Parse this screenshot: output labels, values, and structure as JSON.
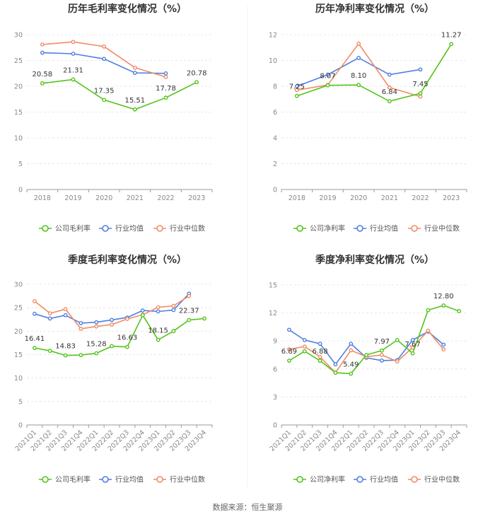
{
  "colors": {
    "company": "#52c41a",
    "average": "#4f7fe0",
    "median": "#f08c64",
    "grid": "#e8e8e8",
    "axis": "#999999"
  },
  "legend_icons": [
    "circle-line-icon",
    "circle-line-icon",
    "circle-line-icon"
  ],
  "source": "数据来源：恒生聚源",
  "chart_data": [
    {
      "type": "line",
      "title": "历年毛利率变化情况（%）",
      "categories": [
        "2018",
        "2019",
        "2020",
        "2021",
        "2022",
        "2023"
      ],
      "ylim": [
        0,
        30
      ],
      "yticks": [
        0,
        5,
        10,
        15,
        20,
        25,
        30
      ],
      "series": [
        {
          "name": "公司毛利率",
          "values": [
            20.58,
            21.31,
            17.35,
            15.51,
            17.78,
            20.78
          ]
        },
        {
          "name": "行业均值",
          "values": [
            26.5,
            26.3,
            25.3,
            22.6,
            22.5,
            null
          ]
        },
        {
          "name": "行业中位数",
          "values": [
            28.1,
            28.6,
            27.7,
            23.6,
            21.8,
            null
          ]
        }
      ],
      "labels": [
        {
          "i": 0,
          "text": "20.58"
        },
        {
          "i": 1,
          "text": "21.31"
        },
        {
          "i": 2,
          "text": "17.35"
        },
        {
          "i": 3,
          "text": "15.51"
        },
        {
          "i": 4,
          "text": "17.78"
        },
        {
          "i": 5,
          "text": "20.78"
        }
      ]
    },
    {
      "type": "line",
      "title": "历年净利率变化情况（%）",
      "categories": [
        "2018",
        "2019",
        "2020",
        "2021",
        "2022",
        "2023"
      ],
      "ylim": [
        0,
        12
      ],
      "yticks": [
        0,
        2,
        4,
        6,
        8,
        10,
        12
      ],
      "series": [
        {
          "name": "公司净利率",
          "values": [
            7.25,
            8.07,
            8.1,
            6.84,
            7.45,
            11.27
          ]
        },
        {
          "name": "行业均值",
          "values": [
            8.0,
            8.9,
            10.2,
            8.9,
            9.3,
            null
          ]
        },
        {
          "name": "行业中位数",
          "values": [
            7.7,
            8.1,
            11.3,
            7.9,
            7.2,
            null
          ]
        }
      ],
      "labels": [
        {
          "i": 0,
          "text": "7.25"
        },
        {
          "i": 1,
          "text": "8.07"
        },
        {
          "i": 2,
          "text": "8.10"
        },
        {
          "i": 3,
          "text": "6.84"
        },
        {
          "i": 4,
          "text": "7.45"
        },
        {
          "i": 5,
          "text": "11.27"
        }
      ]
    },
    {
      "type": "line",
      "title": "季度毛利率变化情况（%）",
      "categories": [
        "2021Q1",
        "2021Q2",
        "2021Q3",
        "2021Q4",
        "2022Q1",
        "2022Q2",
        "2022Q3",
        "2022Q4",
        "2023Q1",
        "2023Q2",
        "2023Q3",
        "2023Q4"
      ],
      "ylim": [
        0,
        30
      ],
      "yticks": [
        0,
        5,
        10,
        15,
        20,
        25,
        30
      ],
      "series": [
        {
          "name": "公司毛利率",
          "values": [
            16.41,
            15.8,
            14.83,
            14.9,
            15.28,
            16.8,
            16.63,
            23.4,
            18.15,
            20.0,
            22.37,
            22.7
          ]
        },
        {
          "name": "行业均值",
          "values": [
            23.7,
            22.7,
            23.4,
            21.7,
            21.9,
            22.4,
            22.9,
            24.4,
            24.2,
            24.5,
            28.0,
            null
          ]
        },
        {
          "name": "行业中位数",
          "values": [
            26.4,
            23.8,
            24.7,
            20.5,
            21.0,
            21.4,
            22.6,
            23.5,
            25.1,
            25.4,
            27.5,
            null
          ]
        }
      ],
      "labels": [
        {
          "i": 0,
          "text": "16.41"
        },
        {
          "i": 2,
          "text": "14.83"
        },
        {
          "i": 4,
          "text": "15.28"
        },
        {
          "i": 6,
          "text": "16.63"
        },
        {
          "i": 8,
          "text": "18.15"
        },
        {
          "i": 10,
          "text": "22.37"
        }
      ]
    },
    {
      "type": "line",
      "title": "季度净利率变化情况（%）",
      "categories": [
        "2021Q1",
        "2021Q2",
        "2021Q3",
        "2021Q4",
        "2022Q1",
        "2022Q2",
        "2022Q3",
        "2022Q4",
        "2023Q1",
        "2023Q2",
        "2023Q3",
        "2023Q4"
      ],
      "ylim": [
        0,
        15
      ],
      "yticks": [
        0,
        3,
        6,
        9,
        12,
        15
      ],
      "series": [
        {
          "name": "公司净利率",
          "values": [
            6.89,
            7.9,
            6.88,
            5.6,
            5.49,
            7.5,
            7.97,
            9.1,
            7.67,
            12.3,
            12.8,
            12.2
          ]
        },
        {
          "name": "行业均值",
          "values": [
            10.2,
            9.1,
            8.7,
            6.5,
            8.7,
            7.2,
            6.9,
            6.95,
            9.1,
            10.0,
            8.6,
            null
          ]
        },
        {
          "name": "行业中位数",
          "values": [
            8.1,
            8.4,
            7.3,
            5.6,
            8.0,
            7.3,
            7.5,
            6.8,
            8.3,
            10.1,
            8.1,
            null
          ]
        }
      ],
      "labels": [
        {
          "i": 0,
          "text": "6.89"
        },
        {
          "i": 2,
          "text": "6.88"
        },
        {
          "i": 4,
          "text": "5.49"
        },
        {
          "i": 6,
          "text": "7.97"
        },
        {
          "i": 8,
          "text": "7.67"
        },
        {
          "i": 10,
          "text": "12.80"
        }
      ]
    }
  ]
}
